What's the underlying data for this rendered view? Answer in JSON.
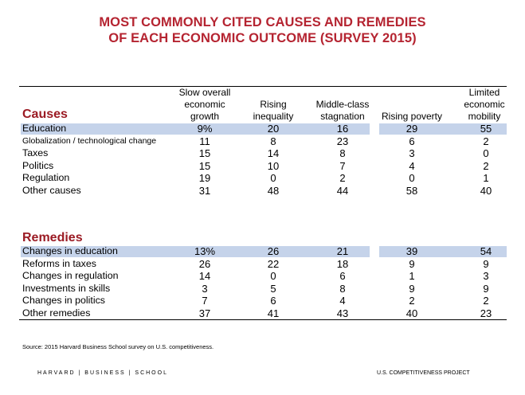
{
  "title_line1": "MOST COMMONLY CITED CAUSES AND REMEDIES",
  "title_line2": "OF EACH ECONOMIC OUTCOME (SURVEY 2015)",
  "columns": [
    [
      "Slow overall",
      "economic",
      "growth"
    ],
    [
      "Rising",
      "inequality"
    ],
    [
      "Middle-class",
      "stagnation"
    ],
    [
      "Rising poverty"
    ],
    [
      "Limited",
      "economic",
      "mobility"
    ]
  ],
  "causes": {
    "heading": "Causes",
    "rows": [
      {
        "label": "Education",
        "values": [
          "9%",
          "20",
          "16",
          "29",
          "55"
        ]
      },
      {
        "label": "Globalization / technological change",
        "values": [
          "11",
          "8",
          "23",
          "6",
          "2"
        ]
      },
      {
        "label": "Taxes",
        "values": [
          "15",
          "14",
          "8",
          "3",
          "0"
        ]
      },
      {
        "label": "Politics",
        "values": [
          "15",
          "10",
          "7",
          "4",
          "2"
        ]
      },
      {
        "label": "Regulation",
        "values": [
          "19",
          "0",
          "2",
          "0",
          "1"
        ]
      },
      {
        "label": "Other causes",
        "values": [
          "31",
          "48",
          "44",
          "58",
          "40"
        ]
      }
    ]
  },
  "remedies": {
    "heading": "Remedies",
    "rows": [
      {
        "label": "Changes in education",
        "values": [
          "13%",
          "26",
          "21",
          "39",
          "54"
        ]
      },
      {
        "label": "Reforms in taxes",
        "values": [
          "26",
          "22",
          "18",
          "9",
          "9"
        ]
      },
      {
        "label": "Changes in regulation",
        "values": [
          "14",
          "0",
          "6",
          "1",
          "3"
        ]
      },
      {
        "label": "Investments in skills",
        "values": [
          "3",
          "5",
          "8",
          "9",
          "9"
        ]
      },
      {
        "label": "Changes in politics",
        "values": [
          "7",
          "6",
          "4",
          "2",
          "2"
        ]
      },
      {
        "label": "Other remedies",
        "values": [
          "37",
          "41",
          "43",
          "40",
          "23"
        ]
      }
    ]
  },
  "source": "Source: 2015 Harvard Business School survey on U.S. competitiveness.",
  "footer_left": "HARVARD | BUSINESS | SCHOOL",
  "footer_right": "U.S. COMPETITIVENESS PROJECT",
  "highlight_color": "#c5d3ea",
  "title_color": "#b52431"
}
